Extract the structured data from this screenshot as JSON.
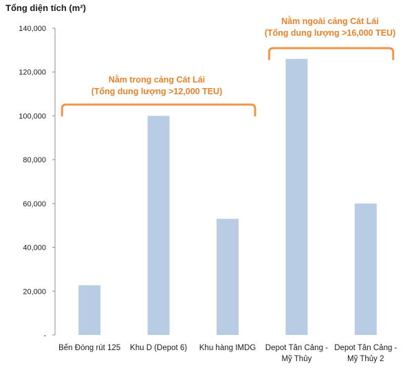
{
  "chart_data": {
    "type": "bar",
    "ylabel": "Tổng diện tích (m²)",
    "categories": [
      [
        "Bến Đóng rút 125"
      ],
      [
        "Khu D (Depot 6)"
      ],
      [
        "Khu hàng IMDG"
      ],
      [
        "Depot Tân Cảng -",
        "Mỹ Thủy"
      ],
      [
        "Depot Tân Cảng -",
        "Mỹ Thủy 2"
      ]
    ],
    "values": [
      22700,
      100000,
      53000,
      126000,
      60000
    ],
    "ylim": [
      0,
      140000
    ],
    "yticks": [
      "-",
      "20,000",
      "40,000",
      "60,000",
      "80,000",
      "100,000",
      "120,000",
      "140,000"
    ],
    "ytick_values": [
      0,
      20000,
      40000,
      60000,
      80000,
      100000,
      120000,
      140000
    ],
    "bar_color": "#b8cce4",
    "bracket_color": "#f0964a",
    "grid": false,
    "annotations": [
      {
        "lines": [
          "Nằm trong cảng Cát Lái",
          "(Tổng dung lượng >12,000 TEU)"
        ],
        "span": [
          0,
          2
        ]
      },
      {
        "lines": [
          "Nằm ngoài cảng Cát Lái",
          "(Tổng dung lượng >16,000 TEU)"
        ],
        "span": [
          3,
          4
        ]
      }
    ]
  }
}
